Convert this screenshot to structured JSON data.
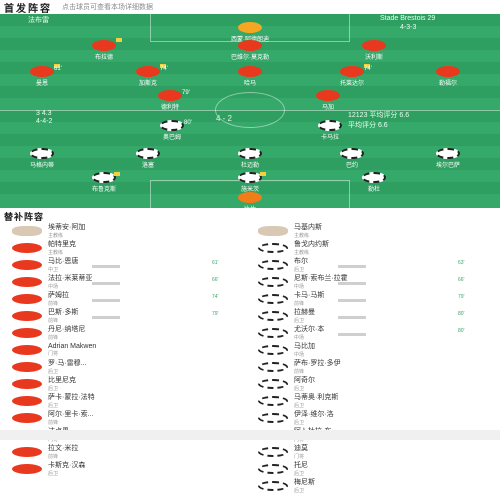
{
  "header": {
    "title": "首发阵容",
    "subtitle": "点击球员可查看本场详细数据"
  },
  "pitch": {
    "home_team": "法布雷",
    "away_team": "Stade Brestois 29",
    "formation_home": "4-4-2",
    "formation_away": "4-3-3",
    "home_rating": "平均评分 6.6",
    "away_rating": "平均评分 6.6",
    "center_text": "4 - 2",
    "home_coach_rating": "3 4.3",
    "away_coach_rating": "3 3.7",
    "info_right_1": "12123 平均评分 6.6",
    "info_right_2": "平均评分 6.6",
    "home_players": [
      {
        "name": "西蒙·阿德朗迪",
        "num": "16",
        "role": "keeper"
      },
      {
        "name": "布拉德",
        "num": "27"
      },
      {
        "name": "巴维尔·莫克勒",
        "num": "5"
      },
      {
        "name": "沃利斯",
        "num": "3"
      },
      {
        "name": "曼恩",
        "num": "24",
        "minute": "61'"
      },
      {
        "name": "加斯克",
        "num": "8",
        "minute": "74'"
      },
      {
        "name": "哈马",
        "num": "6"
      },
      {
        "name": "托莱达尔",
        "num": "22",
        "minute": "74'"
      },
      {
        "name": "勒福尔",
        "num": "10"
      },
      {
        "name": "德利特",
        "num": "9",
        "minute": "79'"
      },
      {
        "name": "马加",
        "num": "11"
      }
    ],
    "away_players": [
      {
        "name": "奥巴姆",
        "num": "9",
        "minute": "80'"
      },
      {
        "name": "卡马拉",
        "num": "14"
      },
      {
        "name": "马格内蒂",
        "num": "8"
      },
      {
        "name": "洛塞",
        "num": "7"
      },
      {
        "name": "杜迈勒",
        "num": "2"
      },
      {
        "name": "巴约",
        "num": "20"
      },
      {
        "name": "埃尔巴萨",
        "num": "3"
      },
      {
        "name": "布鲁克斯",
        "num": "23",
        "minute": "66'"
      },
      {
        "name": "施米茨",
        "num": "15"
      },
      {
        "name": "勒杜",
        "num": "5"
      },
      {
        "name": "比佐",
        "num": "1",
        "role": "keeper"
      }
    ]
  },
  "subs": {
    "title": "替补阵容",
    "home": [
      {
        "name": "埃蒂安·阿加",
        "role": "主教练",
        "type": "coach"
      },
      {
        "name": "帕特里克",
        "role": "主教练",
        "type": "home"
      },
      {
        "name": "马比·恩唐",
        "role": "中卫",
        "minute": "61'"
      },
      {
        "name": "法拉·米莱蒂亚",
        "role": "中场",
        "minute": "66'"
      },
      {
        "name": "萨姆拉",
        "role": "前锋",
        "minute": "74'"
      },
      {
        "name": "巴斯·多斯",
        "role": "前锋",
        "minute": "79'"
      },
      {
        "name": "丹尼·纳塔尼",
        "role": "前锋"
      },
      {
        "name": "Adrian Makwen",
        "role": "门将"
      },
      {
        "name": "罗·马·雷穆...",
        "role": "后卫"
      },
      {
        "name": "比里尼克",
        "role": "后卫"
      },
      {
        "name": "萨卡·蒙拉·法特",
        "role": "后卫"
      },
      {
        "name": "阿尔·里卡·索...",
        "role": "前锋"
      },
      {
        "name": "达卢恩",
        "role": "门将"
      },
      {
        "name": "拉文·米拉",
        "role": "前锋"
      },
      {
        "name": "卡斯克·汉森",
        "role": "后卫"
      }
    ],
    "away": [
      {
        "name": "马基内斯",
        "role": "主教练",
        "type": "coach"
      },
      {
        "name": "鲁戈内约斯",
        "role": "主教练",
        "type": "away"
      },
      {
        "name": "布尔",
        "role": "后卫",
        "minute": "63'"
      },
      {
        "name": "尼斯·索布兰·拉霍",
        "role": "中场",
        "minute": "66'"
      },
      {
        "name": "卡马·马斯",
        "role": "前锋",
        "minute": "79'"
      },
      {
        "name": "拉赫曼",
        "role": "后卫",
        "minute": "80'"
      },
      {
        "name": "尤沃尔·本",
        "role": "中场",
        "minute": "80'"
      },
      {
        "name": "马比加",
        "role": "中场"
      },
      {
        "name": "萨布·罗拉·多伊",
        "role": "前锋"
      },
      {
        "name": "阿奇尔",
        "role": "后卫"
      },
      {
        "name": "马蒂奥·利克斯",
        "role": "后卫"
      },
      {
        "name": "伊泽·维尔·洛",
        "role": "后卫"
      },
      {
        "name": "阿卜杜拉·布...",
        "role": "门将"
      },
      {
        "name": "迪莫",
        "role": "门将"
      },
      {
        "name": "托尼",
        "role": "后卫"
      },
      {
        "name": "梅尼斯",
        "role": "后卫"
      }
    ]
  },
  "colors": {
    "pitch": "#35a96a",
    "home_shirt": "#e8391f",
    "away_shirt": "#ffffff",
    "accent": "#3aa56a"
  }
}
